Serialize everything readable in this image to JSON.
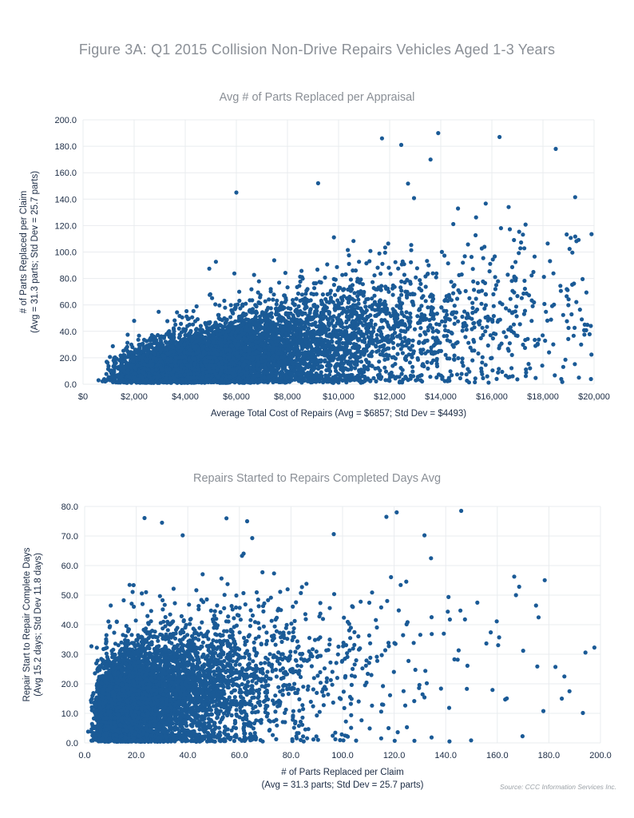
{
  "figure_title": "Figure 3A: Q1 2015 Collision Non-Drive Repairs Vehicles Aged 1-3 Years",
  "source": "Source: CCC Information Services Inc.",
  "marker_color": "#1a5a96",
  "chart_data": [
    {
      "type": "scatter",
      "title": "Avg # of Parts Replaced per Appraisal",
      "xlabel": "Average Total Cost of Repairs (Avg = $6857; Std Dev = $4493)",
      "ylabel_lines": [
        "# of Parts Replaced per Claim",
        "(Avg = 31.3 parts; Std Dev = 25.7 parts)"
      ],
      "xlim": [
        0,
        20000
      ],
      "ylim": [
        0,
        200
      ],
      "x_ticks": [
        0,
        2000,
        4000,
        6000,
        8000,
        10000,
        12000,
        14000,
        16000,
        18000,
        20000
      ],
      "x_tick_labels": [
        "$0",
        "$2,000",
        "$4,000",
        "$6,000",
        "$8,000",
        "$10,000",
        "$12,000",
        "$14,000",
        "$16,000",
        "$18,000",
        "$20,000"
      ],
      "y_ticks": [
        0,
        20,
        40,
        60,
        80,
        100,
        120,
        140,
        160,
        180,
        200
      ],
      "y_tick_labels": [
        "0.0",
        "20.0",
        "40.0",
        "60.0",
        "80.0",
        "100.0",
        "120.0",
        "140.0",
        "160.0",
        "180.0",
        "200.0"
      ],
      "grid": true,
      "x_mean": 6857,
      "x_std": 4493,
      "y_mean": 31.3,
      "y_std": 25.7,
      "n_points": 7000,
      "seed": 7,
      "notable_points": [
        [
          11700,
          186
        ],
        [
          13900,
          190
        ],
        [
          16300,
          187
        ],
        [
          18500,
          178
        ],
        [
          6000,
          145
        ],
        [
          9200,
          152
        ],
        [
          13600,
          170
        ]
      ]
    },
    {
      "type": "scatter",
      "title": "Repairs Started to Repairs Completed Days Avg",
      "xlabel_lines": [
        "# of Parts Replaced per Claim",
        "(Avg = 31.3 parts; Std Dev = 25.7 parts)"
      ],
      "ylabel_lines": [
        "Repair Start to Repair Complete Days",
        "(Avg 15.2 days; Std Dev 11.8 days)"
      ],
      "xlim": [
        0,
        200
      ],
      "ylim": [
        0,
        80
      ],
      "x_ticks": [
        0,
        20,
        40,
        60,
        80,
        100,
        120,
        140,
        160,
        180,
        200
      ],
      "x_tick_labels": [
        "0.0",
        "20.0",
        "40.0",
        "60.0",
        "80.0",
        "100.0",
        "120.0",
        "140.0",
        "160.0",
        "180.0",
        "200.0"
      ],
      "y_ticks": [
        0,
        10,
        20,
        30,
        40,
        50,
        60,
        70,
        80
      ],
      "y_tick_labels": [
        "0.0",
        "10.0",
        "20.0",
        "30.0",
        "40.0",
        "50.0",
        "60.0",
        "70.0",
        "80.0"
      ],
      "grid": true,
      "x_mean": 31.3,
      "x_std": 25.7,
      "y_mean": 15.2,
      "y_std": 11.8,
      "n_points": 6000,
      "seed": 11,
      "notable_points": [
        [
          146,
          78.5
        ],
        [
          121,
          78
        ],
        [
          117,
          76.5
        ],
        [
          55,
          76
        ],
        [
          63,
          75
        ],
        [
          30,
          74.5
        ],
        [
          185,
          15
        ],
        [
          188,
          17.5
        ],
        [
          186,
          22.5
        ],
        [
          175,
          46.5
        ],
        [
          176,
          42.5
        ]
      ]
    }
  ]
}
